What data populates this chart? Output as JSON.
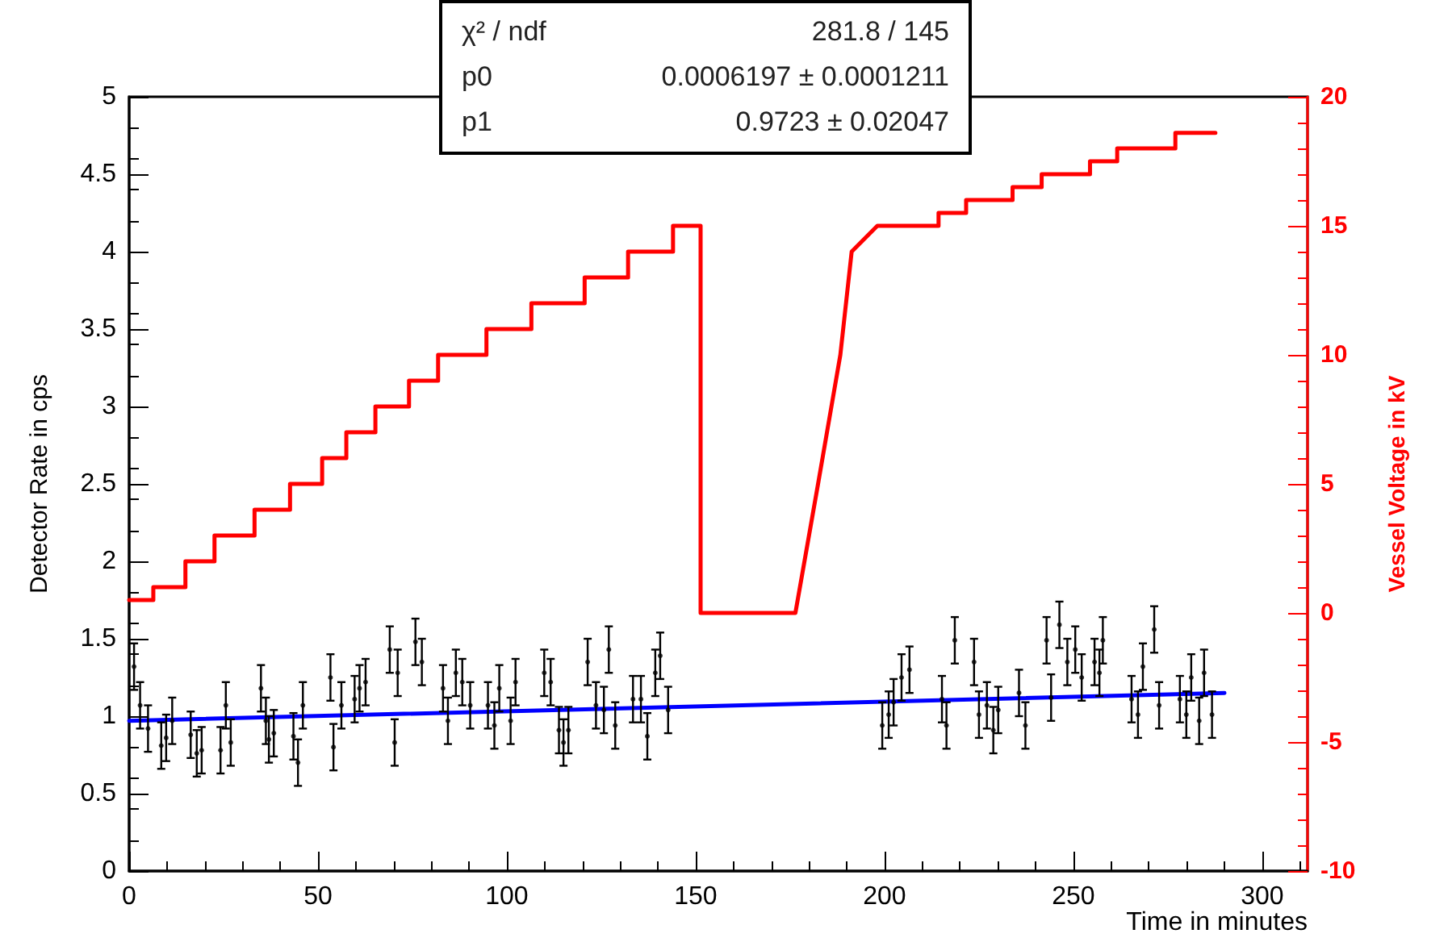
{
  "chart_data": {
    "type": "line",
    "xlabel": "Time in minutes",
    "ylabel": "Detector Rate in cps",
    "y2label": "Vessel Voltage in kV",
    "xlim": [
      0,
      312
    ],
    "xticks": [
      0,
      50,
      100,
      150,
      200,
      250,
      300
    ],
    "ylim": [
      0,
      5
    ],
    "yticks": [
      0,
      0.5,
      1,
      1.5,
      2,
      2.5,
      3,
      3.5,
      4,
      4.5,
      5
    ],
    "y2lim": [
      -10,
      20
    ],
    "y2ticks": [
      -10,
      -5,
      0,
      5,
      10,
      15,
      20
    ],
    "grid": false,
    "annotations": [
      "χ² / ndf",
      "281.8 / 145",
      "p0",
      "0.0006197 ± 0.0001211",
      "p1",
      "0.9723 ± 0.02047"
    ],
    "series": [
      {
        "axis": "y2",
        "color": "#ff0000",
        "x": [
          0,
          6.4,
          6.4,
          14.9,
          14.9,
          22.6,
          22.6,
          33.2,
          33.2,
          42.6,
          42.6,
          51.1,
          51.1,
          57.5,
          57.5,
          65.2,
          65.2,
          74.1,
          74.1,
          81.8,
          81.8,
          94.6,
          94.6,
          106.5,
          106.5,
          120.6,
          120.6,
          132.1,
          132.1,
          144,
          144,
          151.3,
          151.3,
          176.4,
          182.4,
          188.3,
          191.3,
          194.7,
          198.1,
          214.3,
          214.3,
          221.6,
          221.6,
          233.9,
          233.9,
          241.6,
          241.6,
          254.4,
          254.4,
          261.6,
          261.6,
          277,
          277,
          287.6
        ],
        "values": [
          0.5,
          0.5,
          1,
          1,
          2,
          2,
          3,
          3,
          4,
          4,
          5,
          5,
          6,
          6,
          7,
          7,
          8,
          8,
          9,
          9,
          10,
          10,
          11,
          11,
          12,
          12,
          13,
          13,
          14,
          14,
          15,
          15,
          0,
          0,
          5,
          10,
          14,
          14.5,
          15,
          15,
          15.5,
          15.5,
          16,
          16,
          16.5,
          16.5,
          17,
          17,
          17.5,
          17.5,
          18,
          18,
          18.6,
          18.6
        ]
      },
      {
        "type": "scatter",
        "color": "#000000",
        "x": [
          1.3,
          2.9,
          5,
          8.5,
          9.8,
          11.4,
          16.3,
          17.9,
          19.2,
          24.2,
          25.6,
          26.9,
          34.9,
          36.2,
          37,
          38.3,
          43.5,
          44.7,
          46,
          53.3,
          54.1,
          56.2,
          59.7,
          61,
          62.6,
          69,
          70.3,
          71.1,
          75.8,
          77.5,
          83.1,
          84.4,
          86.5,
          88.2,
          90.3,
          95,
          96.7,
          98,
          101,
          102.3,
          109.9,
          111.6,
          113.8,
          115,
          116.3,
          121.4,
          123.6,
          125.7,
          127,
          128.7,
          133.4,
          135.5,
          137.2,
          139.3,
          140.6,
          142.7,
          199.4,
          201.1,
          202.4,
          204.5,
          206.6,
          215.2,
          216.4,
          218.6,
          223.7,
          225,
          227.1,
          228.8,
          230.1,
          235.6,
          237.3,
          242.9,
          244.1,
          246.3,
          248.4,
          250.5,
          252.2,
          255.6,
          256.9,
          257.8,
          265.4,
          267.1,
          268.4,
          271.4,
          272.7,
          278.2,
          279.9,
          281.2,
          283.3,
          284.6,
          286.7
        ],
        "values": [
          1.32,
          1.07,
          0.92,
          0.81,
          0.86,
          0.97,
          0.88,
          0.76,
          0.78,
          0.78,
          1.07,
          0.83,
          1.18,
          0.97,
          0.85,
          0.89,
          0.87,
          0.7,
          1.07,
          1.25,
          0.8,
          1.07,
          1.11,
          1.18,
          1.22,
          1.43,
          0.83,
          1.28,
          1.48,
          1.35,
          1.18,
          0.97,
          1.28,
          1.22,
          1.07,
          1.07,
          0.94,
          1.18,
          0.97,
          1.22,
          1.28,
          1.22,
          0.91,
          0.83,
          0.91,
          1.35,
          1.07,
          1.04,
          1.43,
          0.94,
          1.11,
          1.11,
          0.87,
          1.28,
          1.39,
          1.04,
          0.94,
          1.01,
          1.09,
          1.25,
          1.3,
          1.11,
          0.94,
          1.49,
          1.35,
          1.01,
          1.07,
          0.91,
          1.04,
          1.15,
          0.94,
          1.49,
          1.12,
          1.59,
          1.35,
          1.43,
          1.25,
          1.35,
          1.28,
          1.49,
          1.11,
          1.01,
          1.32,
          1.56,
          1.07,
          1.11,
          1.01,
          1.25,
          0.97,
          1.28,
          1.01
        ],
        "errors": [
          0.15,
          0.15,
          0.15,
          0.15,
          0.15,
          0.15,
          0.15,
          0.15,
          0.15,
          0.15,
          0.15,
          0.15,
          0.15,
          0.15,
          0.15,
          0.15,
          0.15,
          0.15,
          0.15,
          0.15,
          0.15,
          0.15,
          0.15,
          0.15,
          0.15,
          0.15,
          0.15,
          0.15,
          0.15,
          0.15,
          0.15,
          0.15,
          0.15,
          0.15,
          0.15,
          0.15,
          0.15,
          0.15,
          0.15,
          0.15,
          0.15,
          0.15,
          0.15,
          0.15,
          0.15,
          0.15,
          0.15,
          0.15,
          0.15,
          0.15,
          0.15,
          0.15,
          0.15,
          0.15,
          0.15,
          0.15,
          0.15,
          0.15,
          0.15,
          0.15,
          0.15,
          0.15,
          0.15,
          0.15,
          0.15,
          0.15,
          0.15,
          0.15,
          0.15,
          0.15,
          0.15,
          0.15,
          0.15,
          0.15,
          0.15,
          0.15,
          0.15,
          0.15,
          0.15,
          0.15,
          0.15,
          0.15,
          0.15,
          0.15,
          0.15,
          0.15,
          0.15,
          0.15,
          0.15,
          0.15,
          0.15
        ]
      },
      {
        "color": "#0000ff",
        "x": [
          0,
          290
        ],
        "values": [
          0.97,
          1.15
        ]
      }
    ]
  }
}
